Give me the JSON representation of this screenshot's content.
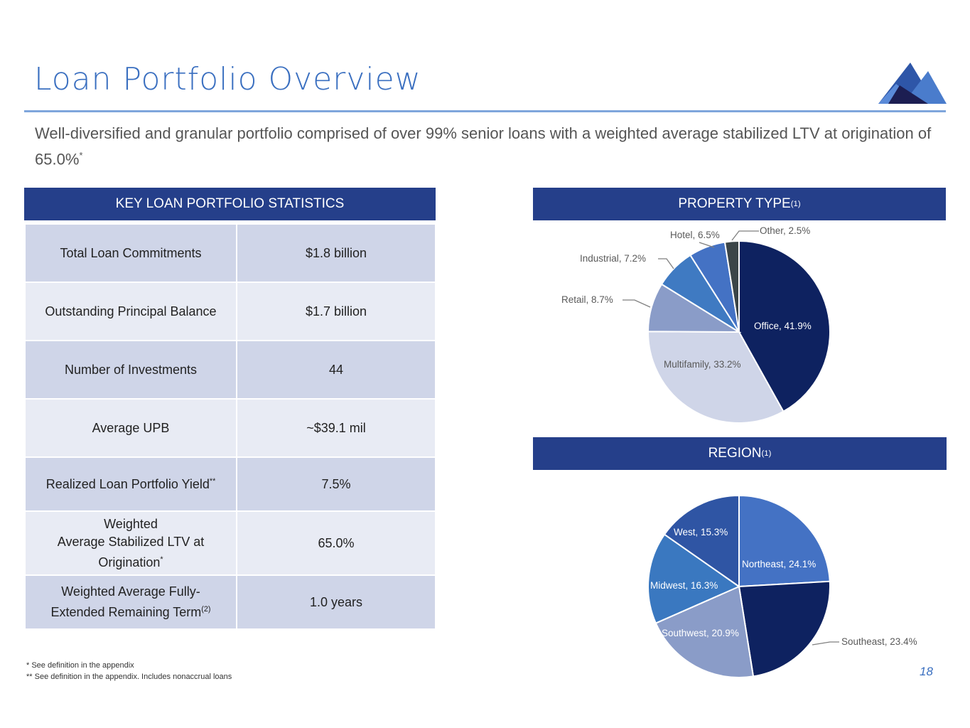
{
  "header": {
    "title": "Loan Portfolio Overview",
    "subtitle": "Well-diversified and granular portfolio comprised of over 99% senior loans with a weighted average stabilized LTV at origination of 65.0%",
    "subtitle_mark": "*"
  },
  "stats": {
    "heading": "KEY LOAN PORTFOLIO STATISTICS",
    "rows": [
      {
        "label": "Total Loan Commitments",
        "value": "$1.8 billion"
      },
      {
        "label": "Outstanding Principal Balance",
        "value": "$1.7 billion"
      },
      {
        "label": "Number of Investments",
        "value": "44"
      },
      {
        "label": "Average UPB",
        "value": "~$39.1 mil"
      },
      {
        "label": "Realized Loan Portfolio Yield",
        "mark": "**",
        "value": "7.5%"
      },
      {
        "label1": "Weighted",
        "label2": "Average Stabilized LTV at",
        "label3": "Origination",
        "mark": "*",
        "value": "65.0%"
      },
      {
        "label1": "Weighted Average Fully-",
        "label2": "Extended Remaining Term",
        "mark": "(2)",
        "value": "1.0 years"
      }
    ]
  },
  "footnotes": [
    "* See definition in the appendix",
    "** See definition in the appendix. Includes nonaccrual loans"
  ],
  "page_number": "18",
  "chart_data": [
    {
      "type": "pie",
      "title": "PROPERTY TYPE",
      "title_mark": "(1)",
      "categories": [
        "Office",
        "Multifamily",
        "Retail",
        "Industrial",
        "Hotel",
        "Other"
      ],
      "values": [
        41.9,
        33.2,
        8.7,
        7.2,
        6.5,
        2.5
      ],
      "labels": [
        "Office, 41.9%",
        "Multifamily, 33.2%",
        "Retail, 8.7%",
        "Industrial, 7.2%",
        "Hotel, 6.5%",
        "Other, 2.5%"
      ],
      "colors": [
        "#0e2260",
        "#cfd5e8",
        "#8a9cc8",
        "#3f7ac2",
        "#4472c4",
        "#3b4548"
      ]
    },
    {
      "type": "pie",
      "title": "REGION",
      "title_mark": "(1)",
      "categories": [
        "Northeast",
        "Southeast",
        "Southwest",
        "Midwest",
        "West"
      ],
      "values": [
        24.1,
        23.4,
        20.9,
        16.3,
        15.3
      ],
      "labels": [
        "Northeast, 24.1%",
        "Southeast, 23.4%",
        "Southwest, 20.9%",
        "Midwest, 16.3%",
        "West, 15.3%"
      ],
      "colors": [
        "#4472c4",
        "#0e2260",
        "#8a9cc8",
        "#3a78c0",
        "#2f55a4"
      ]
    }
  ]
}
